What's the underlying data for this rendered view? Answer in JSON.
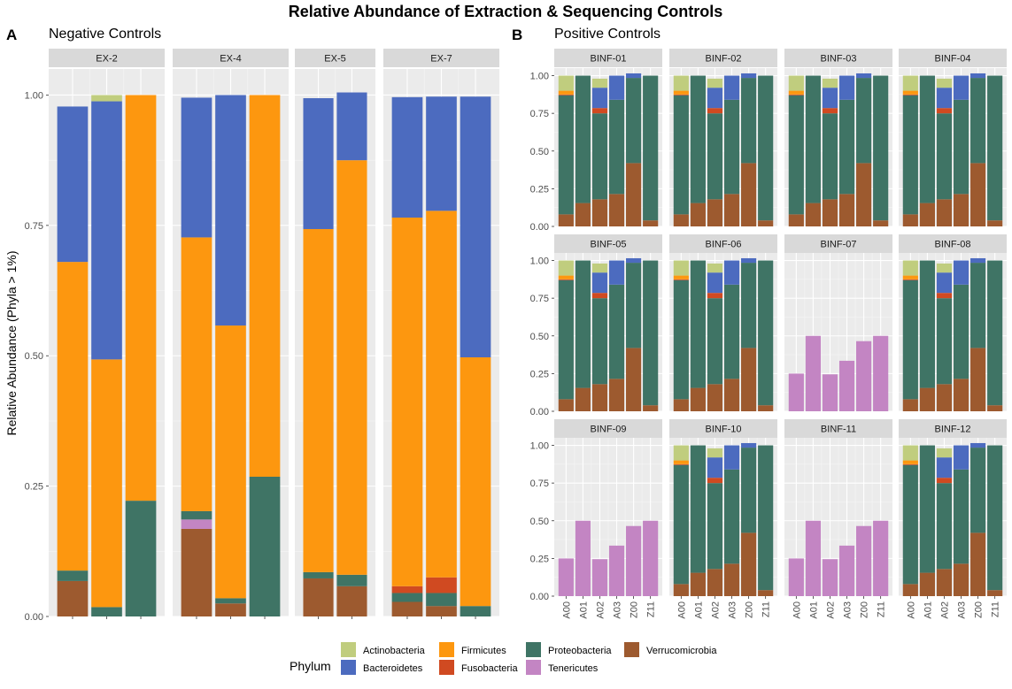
{
  "title": "Relative Abundance of Extraction & Sequencing Controls",
  "panels": {
    "A": {
      "letter": "A",
      "subtitle": "Negative Controls"
    },
    "B": {
      "letter": "B",
      "subtitle": "Positive Controls"
    }
  },
  "legend": {
    "title": "Phylum",
    "items": [
      {
        "name": "Actinobacteria",
        "color": "#C0CD7E"
      },
      {
        "name": "Bacteroidetes",
        "color": "#4C6BBF"
      },
      {
        "name": "Firmicutes",
        "color": "#FD970F"
      },
      {
        "name": "Fusobacteria",
        "color": "#D04A21"
      },
      {
        "name": "Proteobacteria",
        "color": "#3F7465"
      },
      {
        "name": "Tenericutes",
        "color": "#C385C3"
      },
      {
        "name": "Verrucomicrobia",
        "color": "#9D5A2F"
      }
    ]
  },
  "chart_data": [
    {
      "type": "bar",
      "stacked": true,
      "panel": "A",
      "subtitle": "Negative Controls",
      "ylabel": "Relative Abundance (Phyla > 1%)",
      "ylim": [
        0,
        1.05
      ],
      "yticks": [
        "0.00",
        "0.25",
        "0.50",
        "0.75",
        "1.00"
      ],
      "grid": true,
      "facets": [
        {
          "label": "EX-2",
          "bars": [
            {
              "Verrucomicrobia": 0.068,
              "Proteobacteria": 0.02,
              "Firmicutes": 0.592,
              "Bacteroidetes": 0.298
            },
            {
              "Proteobacteria": 0.018,
              "Firmicutes": 0.475,
              "Bacteroidetes": 0.495,
              "Actinobacteria": 0.012
            },
            {
              "Proteobacteria": 0.222,
              "Firmicutes": 0.778
            }
          ]
        },
        {
          "label": "EX-4",
          "bars": [
            {
              "Verrucomicrobia": 0.168,
              "Tenericutes": 0.018,
              "Proteobacteria": 0.016,
              "Firmicutes": 0.525,
              "Bacteroidetes": 0.268
            },
            {
              "Verrucomicrobia": 0.025,
              "Proteobacteria": 0.01,
              "Firmicutes": 0.523,
              "Bacteroidetes": 0.442
            },
            {
              "Proteobacteria": 0.268,
              "Firmicutes": 0.732
            }
          ]
        },
        {
          "label": "EX-5",
          "bars": [
            {
              "Verrucomicrobia": 0.073,
              "Proteobacteria": 0.012,
              "Firmicutes": 0.658,
              "Bacteroidetes": 0.251
            },
            {
              "Verrucomicrobia": 0.058,
              "Proteobacteria": 0.022,
              "Firmicutes": 0.795,
              "Bacteroidetes": 0.13
            }
          ]
        },
        {
          "label": "EX-7",
          "bars": [
            {
              "Verrucomicrobia": 0.028,
              "Proteobacteria": 0.017,
              "Fusobacteria": 0.013,
              "Firmicutes": 0.707,
              "Bacteroidetes": 0.231
            },
            {
              "Verrucomicrobia": 0.02,
              "Proteobacteria": 0.025,
              "Fusobacteria": 0.03,
              "Firmicutes": 0.703,
              "Bacteroidetes": 0.219
            },
            {
              "Proteobacteria": 0.02,
              "Firmicutes": 0.477,
              "Bacteroidetes": 0.5
            }
          ]
        }
      ]
    },
    {
      "type": "bar",
      "stacked": true,
      "panel": "B",
      "subtitle": "Positive Controls",
      "categories": [
        "A00",
        "A01",
        "A02",
        "A03",
        "Z00",
        "Z11"
      ],
      "ylim": [
        0,
        1.05
      ],
      "yticks": [
        "0.00",
        "0.25",
        "0.50",
        "0.75",
        "1.00"
      ],
      "grid": true,
      "bars_standard": [
        {
          "Verrucomicrobia": 0.08,
          "Proteobacteria": 0.79,
          "Fusobacteria": 0.005,
          "Firmicutes": 0.025,
          "Actinobacteria": 0.1
        },
        {
          "Verrucomicrobia": 0.155,
          "Proteobacteria": 0.845
        },
        {
          "Verrucomicrobia": 0.18,
          "Proteobacteria": 0.57,
          "Fusobacteria": 0.035,
          "Bacteroidetes": 0.135,
          "Actinobacteria": 0.06
        },
        {
          "Verrucomicrobia": 0.215,
          "Proteobacteria": 0.625,
          "Bacteroidetes": 0.16
        },
        {
          "Verrucomicrobia": 0.42,
          "Proteobacteria": 0.565,
          "Bacteroidetes": 0.03
        },
        {
          "Verrucomicrobia": 0.04,
          "Proteobacteria": 0.96
        }
      ],
      "bars_tenericutes": [
        {
          "Tenericutes": 0.25
        },
        {
          "Tenericutes": 0.5
        },
        {
          "Tenericutes": 0.245
        },
        {
          "Tenericutes": 0.335
        },
        {
          "Tenericutes": 0.465
        },
        {
          "Tenericutes": 0.5
        }
      ],
      "facets": [
        {
          "label": "BINF-01",
          "profile": "standard"
        },
        {
          "label": "BINF-02",
          "profile": "standard"
        },
        {
          "label": "BINF-03",
          "profile": "standard"
        },
        {
          "label": "BINF-04",
          "profile": "standard"
        },
        {
          "label": "BINF-05",
          "profile": "standard"
        },
        {
          "label": "BINF-06",
          "profile": "standard"
        },
        {
          "label": "BINF-07",
          "profile": "tenericutes"
        },
        {
          "label": "BINF-08",
          "profile": "standard"
        },
        {
          "label": "BINF-09",
          "profile": "tenericutes"
        },
        {
          "label": "BINF-10",
          "profile": "standard"
        },
        {
          "label": "BINF-11",
          "profile": "tenericutes"
        },
        {
          "label": "BINF-12",
          "profile": "standard"
        }
      ]
    }
  ]
}
